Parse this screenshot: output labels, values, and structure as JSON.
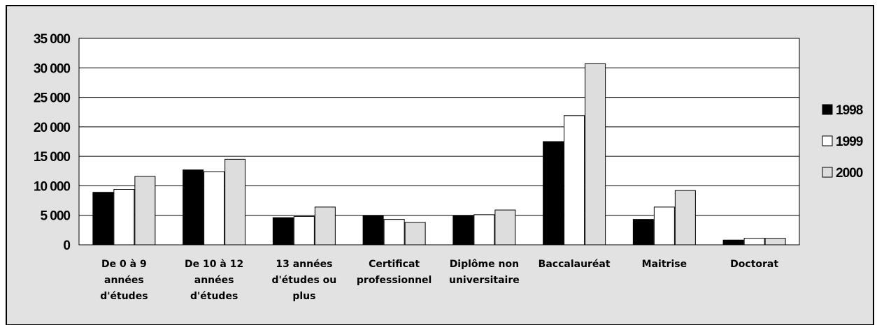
{
  "chart_data": {
    "type": "bar",
    "categories": [
      [
        "De 0 à 9",
        "années",
        "d'études"
      ],
      [
        "De 10 à 12",
        "années",
        "d'études"
      ],
      [
        "13 années",
        "d'études ou",
        "plus"
      ],
      [
        "Certificat",
        "professionnel"
      ],
      [
        "Diplôme non",
        "universitaire"
      ],
      [
        "Baccalauréat"
      ],
      [
        "Maitrise"
      ],
      [
        "Doctorat"
      ]
    ],
    "series": [
      {
        "name": "1998",
        "color": "#000000",
        "values": [
          8900,
          12700,
          4600,
          4900,
          4900,
          17500,
          4300,
          800
        ]
      },
      {
        "name": "1999",
        "color": "#ffffff",
        "values": [
          9400,
          12400,
          4800,
          4300,
          5100,
          21900,
          6400,
          1100
        ]
      },
      {
        "name": "2000",
        "color": "#dddddd",
        "values": [
          11600,
          14500,
          6400,
          3800,
          5900,
          30700,
          9200,
          1100
        ]
      }
    ],
    "ylim": [
      0,
      35000
    ],
    "yticks": [
      "0",
      "5 000",
      "10 000",
      "15 000",
      "20 000",
      "25 000",
      "30 000",
      "35 000"
    ],
    "grid": true,
    "legend_position": "right",
    "colors": {
      "background": "#e2e2e2",
      "plot_area": "#ffffff",
      "border": "#000000"
    }
  }
}
